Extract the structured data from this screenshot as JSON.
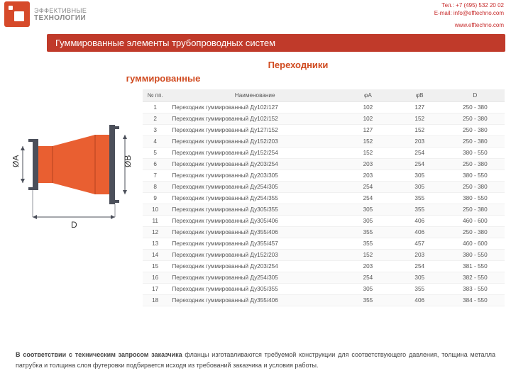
{
  "header": {
    "logo_line1": "ЭФФЕКТИВНЫЕ",
    "logo_line2": "ТЕХНОЛОГИИ",
    "phone": "Тел.: +7 (495) 532 20 02",
    "email": "E-mail: info@efftechno.com",
    "site": "www.efftechno.com"
  },
  "banner": "Гуммированные элементы трубопроводных систем",
  "title_a": "Переходники",
  "title_b": "гуммированные",
  "diagram": {
    "labels": {
      "phiA": "ØA",
      "phiB": "ØB",
      "D": "D"
    },
    "colors": {
      "body": "#e95f31",
      "body_shadow": "#cf4e24",
      "flange": "#4b4f5a",
      "bolt": "#4b4f5a",
      "dim_line": "#4b4f5a"
    }
  },
  "table": {
    "columns": [
      "№ пп.",
      "Наименование",
      "φA",
      "φB",
      "D"
    ],
    "col_widths": [
      "34px",
      "236px",
      "70px",
      "70px",
      "80px"
    ],
    "rows": [
      [
        "1",
        "Переходник гуммированный Ду102/127",
        "102",
        "127",
        "250 - 380"
      ],
      [
        "2",
        "Переходник гуммированный Ду102/152",
        "102",
        "152",
        "250 - 380"
      ],
      [
        "3",
        "Переходник гуммированный Ду127/152",
        "127",
        "152",
        "250 - 380"
      ],
      [
        "4",
        "Переходник гуммированный Ду152/203",
        "152",
        "203",
        "250 - 380"
      ],
      [
        "5",
        "Переходник гуммированный Ду152/254",
        "152",
        "254",
        "380 - 550"
      ],
      [
        "6",
        "Переходник гуммированный Ду203/254",
        "203",
        "254",
        "250 - 380"
      ],
      [
        "7",
        "Переходник гуммированный Ду203/305",
        "203",
        "305",
        "380 - 550"
      ],
      [
        "8",
        "Переходник гуммированный Ду254/305",
        "254",
        "305",
        "250 - 380"
      ],
      [
        "9",
        "Переходник гуммированный Ду254/355",
        "254",
        "355",
        "380 - 550"
      ],
      [
        "10",
        "Переходник гуммированный Ду305/355",
        "305",
        "355",
        "250 - 380"
      ],
      [
        "11",
        "Переходник гуммированный Ду305/406",
        "305",
        "406",
        "460 - 600"
      ],
      [
        "12",
        "Переходник гуммированный Ду355/406",
        "355",
        "406",
        "250 - 380"
      ],
      [
        "13",
        "Переходник гуммированный Ду355/457",
        "355",
        "457",
        "460 - 600"
      ],
      [
        "14",
        "Переходник гуммированный Ду152/203",
        "152",
        "203",
        "380 - 550"
      ],
      [
        "15",
        "Переходник гуммированный Ду203/254",
        "203",
        "254",
        "381 - 550"
      ],
      [
        "16",
        "Переходник гуммированный Ду254/305",
        "254",
        "305",
        "382 - 550"
      ],
      [
        "17",
        "Переходник гуммированный Ду305/355",
        "305",
        "355",
        "383 - 550"
      ],
      [
        "18",
        "Переходник гуммированный Ду355/406",
        "355",
        "406",
        "384 - 550"
      ]
    ]
  },
  "footnote_bold": "В соответствии с техническим запросом заказчика",
  "footnote_rest": " фланцы изготавливаются требуемой конструкции для соответствующего давления, толщина металла патрубка и толщина слоя футеровки подбирается исходя из требований заказчика и условия работы."
}
